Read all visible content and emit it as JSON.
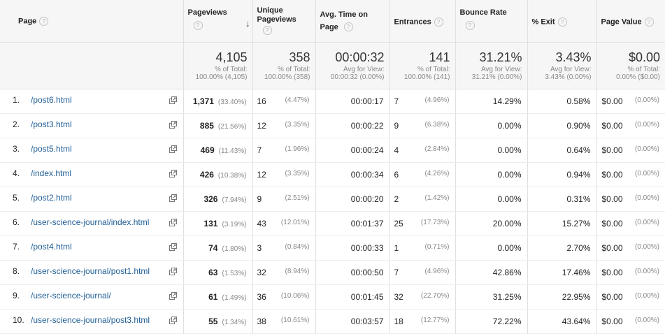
{
  "headers": {
    "page": "Page",
    "pageviews": "Pageviews",
    "unique": "Unique Pageviews",
    "avg_time": "Avg. Time on Page",
    "entrances": "Entrances",
    "bounce": "Bounce Rate",
    "exit": "% Exit",
    "page_value": "Page Value",
    "help_glyph": "?",
    "sort_glyph": "↓"
  },
  "totals": {
    "pageviews": {
      "value": "4,105",
      "sub1": "% of Total:",
      "sub2": "100.00% (4,105)"
    },
    "unique": {
      "value": "358",
      "sub1": "% of Total:",
      "sub2": "100.00% (358)"
    },
    "avg_time": {
      "value": "00:00:32",
      "sub1": "Avg for View:",
      "sub2": "00:00:32 (0.00%)"
    },
    "entrances": {
      "value": "141",
      "sub1": "% of Total:",
      "sub2": "100.00% (141)"
    },
    "bounce": {
      "value": "31.21%",
      "sub1": "Avg for View:",
      "sub2": "31.21% (0.00%)"
    },
    "exit": {
      "value": "3.43%",
      "sub1": "Avg for View:",
      "sub2": "3.43% (0.00%)"
    },
    "page_value": {
      "value": "$0.00",
      "sub1": "% of Total:",
      "sub2": "0.00% ($0.00)"
    }
  },
  "rows": [
    {
      "num": "1.",
      "page": "/post6.html",
      "pv": "1,371",
      "pv_pct": "(33.40%)",
      "up": "16",
      "up_pct": "(4.47%)",
      "time": "00:00:17",
      "ent": "7",
      "ent_pct": "(4.96%)",
      "bounce": "14.29%",
      "exit": "0.58%",
      "val": "$0.00",
      "val_pct": "(0.00%)"
    },
    {
      "num": "2.",
      "page": "/post3.html",
      "pv": "885",
      "pv_pct": "(21.56%)",
      "up": "12",
      "up_pct": "(3.35%)",
      "time": "00:00:22",
      "ent": "9",
      "ent_pct": "(6.38%)",
      "bounce": "0.00%",
      "exit": "0.90%",
      "val": "$0.00",
      "val_pct": "(0.00%)"
    },
    {
      "num": "3.",
      "page": "/post5.html",
      "pv": "469",
      "pv_pct": "(11.43%)",
      "up": "7",
      "up_pct": "(1.96%)",
      "time": "00:00:24",
      "ent": "4",
      "ent_pct": "(2.84%)",
      "bounce": "0.00%",
      "exit": "0.64%",
      "val": "$0.00",
      "val_pct": "(0.00%)"
    },
    {
      "num": "4.",
      "page": "/index.html",
      "pv": "426",
      "pv_pct": "(10.38%)",
      "up": "12",
      "up_pct": "(3.35%)",
      "time": "00:00:34",
      "ent": "6",
      "ent_pct": "(4.26%)",
      "bounce": "0.00%",
      "exit": "0.94%",
      "val": "$0.00",
      "val_pct": "(0.00%)"
    },
    {
      "num": "5.",
      "page": "/post2.html",
      "pv": "326",
      "pv_pct": "(7.94%)",
      "up": "9",
      "up_pct": "(2.51%)",
      "time": "00:00:20",
      "ent": "2",
      "ent_pct": "(1.42%)",
      "bounce": "0.00%",
      "exit": "0.31%",
      "val": "$0.00",
      "val_pct": "(0.00%)"
    },
    {
      "num": "6.",
      "page": "/user-science-journal/index.html",
      "pv": "131",
      "pv_pct": "(3.19%)",
      "up": "43",
      "up_pct": "(12.01%)",
      "time": "00:01:37",
      "ent": "25",
      "ent_pct": "(17.73%)",
      "bounce": "20.00%",
      "exit": "15.27%",
      "val": "$0.00",
      "val_pct": "(0.00%)"
    },
    {
      "num": "7.",
      "page": "/post4.html",
      "pv": "74",
      "pv_pct": "(1.80%)",
      "up": "3",
      "up_pct": "(0.84%)",
      "time": "00:00:33",
      "ent": "1",
      "ent_pct": "(0.71%)",
      "bounce": "0.00%",
      "exit": "2.70%",
      "val": "$0.00",
      "val_pct": "(0.00%)"
    },
    {
      "num": "8.",
      "page": "/user-science-journal/post1.html",
      "pv": "63",
      "pv_pct": "(1.53%)",
      "up": "32",
      "up_pct": "(8.94%)",
      "time": "00:00:50",
      "ent": "7",
      "ent_pct": "(4.96%)",
      "bounce": "42.86%",
      "exit": "17.46%",
      "val": "$0.00",
      "val_pct": "(0.00%)"
    },
    {
      "num": "9.",
      "page": "/user-science-journal/",
      "pv": "61",
      "pv_pct": "(1.49%)",
      "up": "36",
      "up_pct": "(10.06%)",
      "time": "00:01:45",
      "ent": "32",
      "ent_pct": "(22.70%)",
      "bounce": "31.25%",
      "exit": "22.95%",
      "val": "$0.00",
      "val_pct": "(0.00%)"
    },
    {
      "num": "10.",
      "page": "/user-science-journal/post3.html",
      "pv": "55",
      "pv_pct": "(1.34%)",
      "up": "38",
      "up_pct": "(10.61%)",
      "time": "00:03:57",
      "ent": "18",
      "ent_pct": "(12.77%)",
      "bounce": "72.22%",
      "exit": "43.64%",
      "val": "$0.00",
      "val_pct": "(0.00%)"
    }
  ],
  "colors": {
    "link": "#1f5e96",
    "header_bg": "#f6f6f6",
    "muted": "#888888"
  },
  "icons": {
    "row_action": "open-in-new-window-icon",
    "help": "help-icon",
    "sort": "sort-descending-arrow-icon"
  }
}
